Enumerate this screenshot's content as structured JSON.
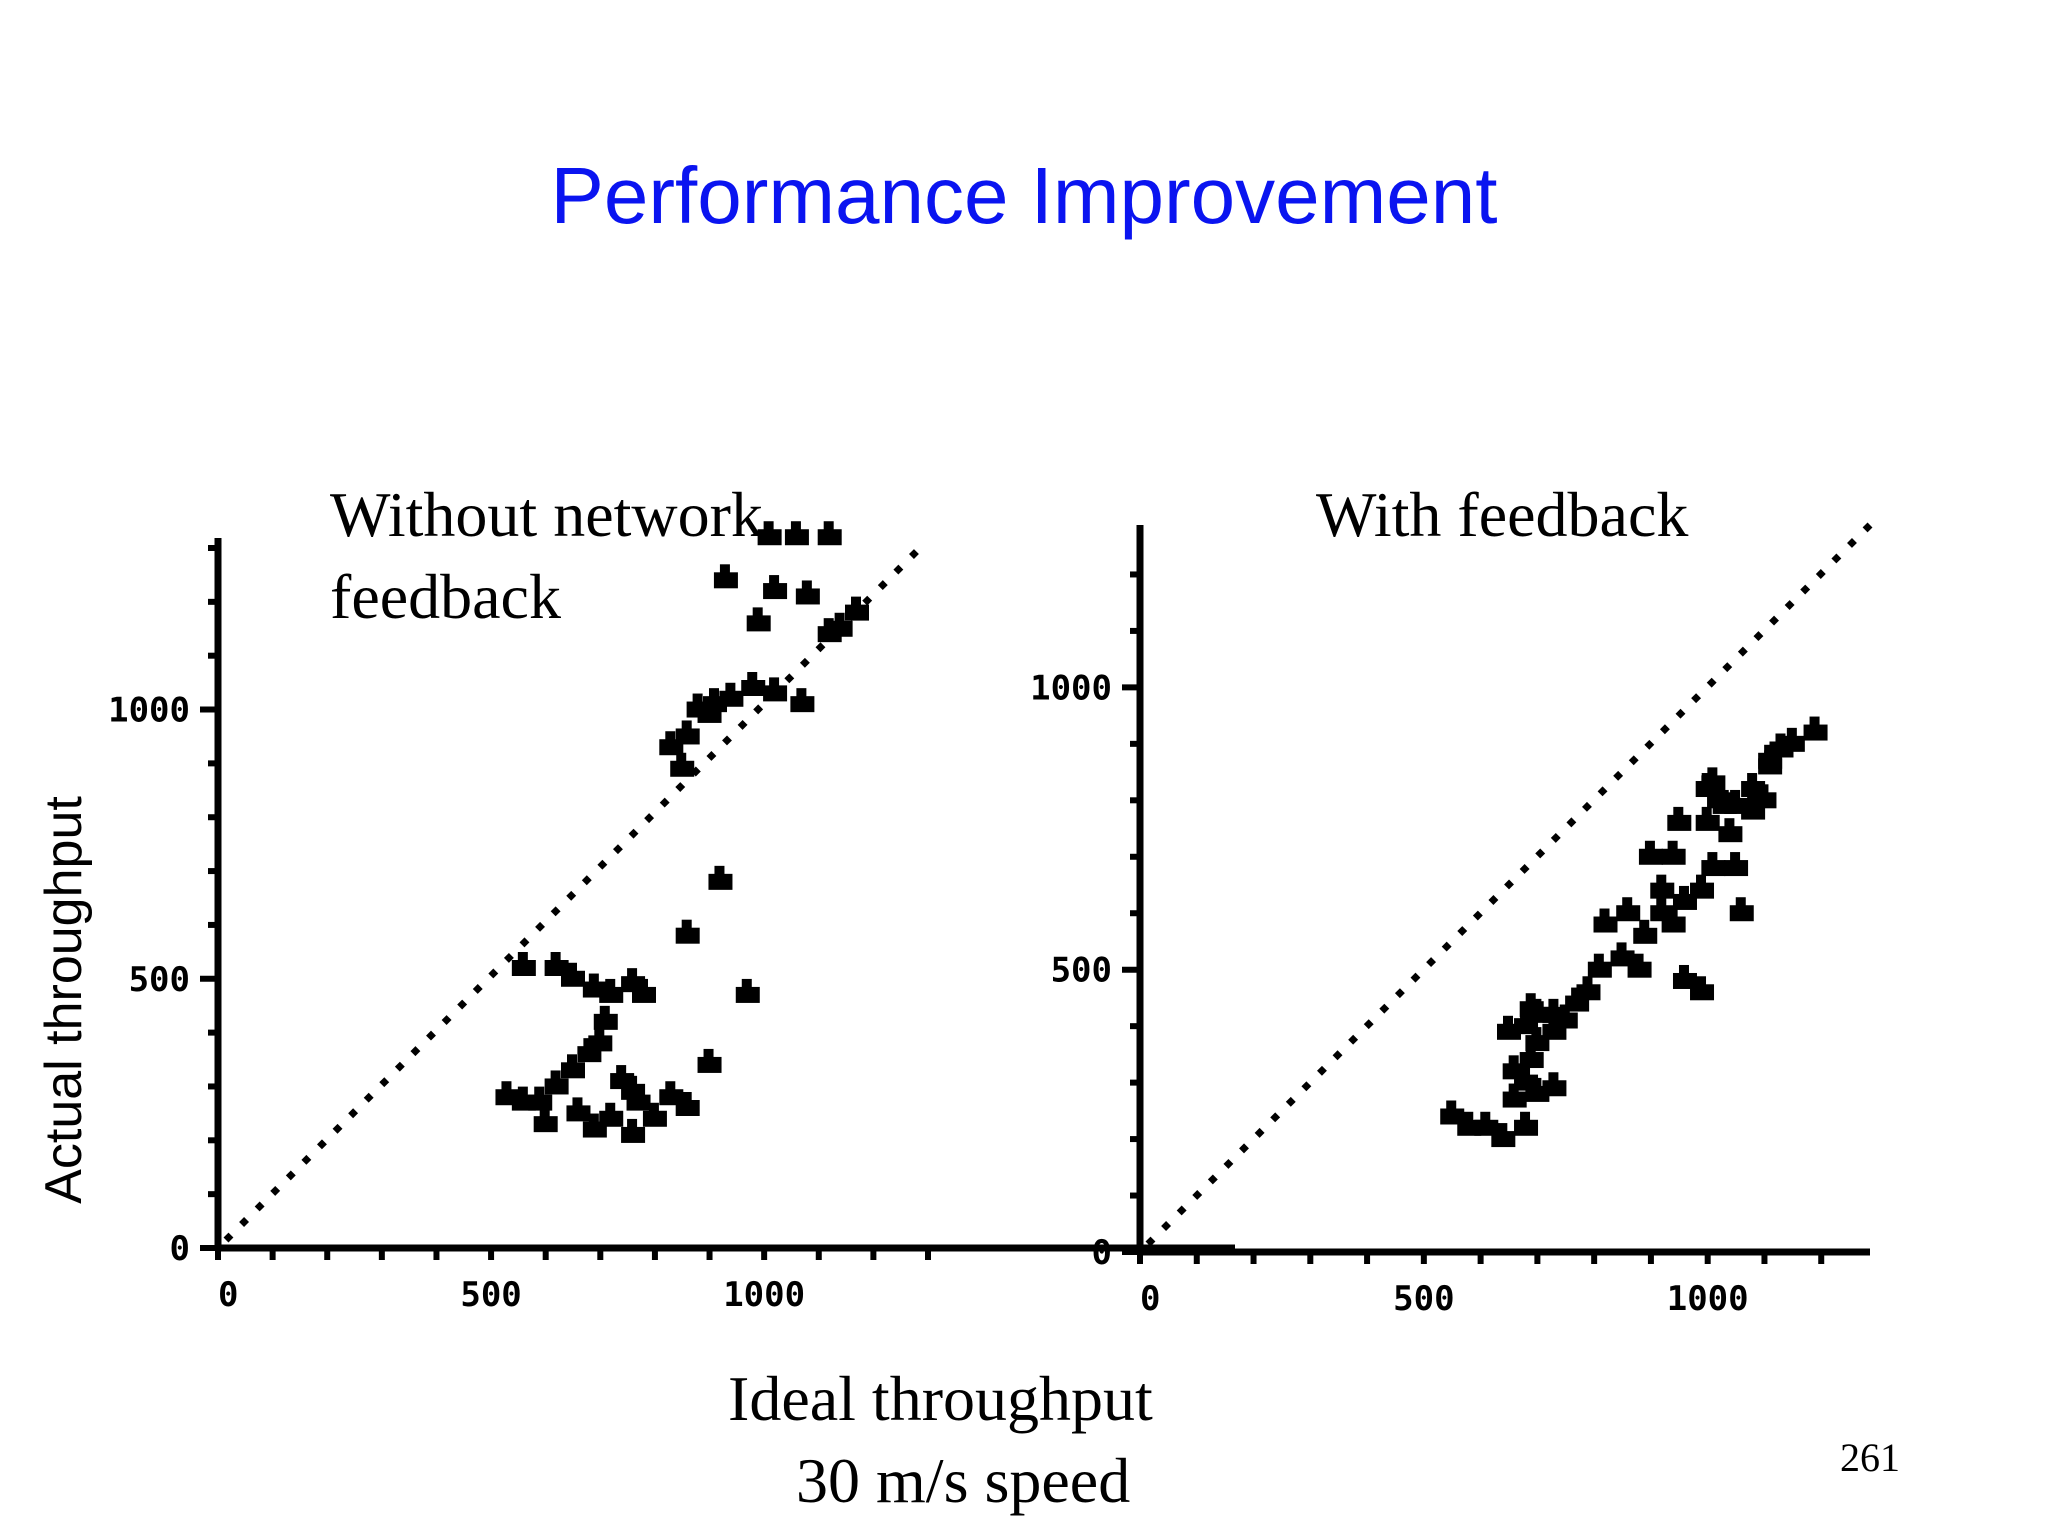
{
  "slide": {
    "title": "Performance Improvement",
    "y_axis_label": "Actual throughput",
    "x_axis_label_line1": "Ideal throughput",
    "x_axis_label_line2": "30 m/s speed",
    "page_number": "261"
  },
  "chart_data": [
    {
      "type": "scatter",
      "title": "Without network feedback",
      "title_lines": [
        "Without network",
        "feedback"
      ],
      "xlim": [
        0,
        1300
      ],
      "ylim": [
        0,
        1300
      ],
      "xticks": [
        0,
        500,
        1000
      ],
      "xtick_labels": [
        "0",
        "500",
        "1000"
      ],
      "yticks": [
        0,
        500,
        1000
      ],
      "ytick_labels": [
        "0",
        "500",
        "1000"
      ],
      "grid": false,
      "series": [
        {
          "points": [
            [
              560,
              270
            ],
            [
              590,
              270
            ],
            [
              620,
              300
            ],
            [
              650,
              330
            ],
            [
              680,
              360
            ],
            [
              700,
              380
            ],
            [
              710,
              420
            ],
            [
              740,
              310
            ],
            [
              770,
              270
            ],
            [
              800,
              240
            ],
            [
              530,
              280
            ],
            [
              600,
              230
            ],
            [
              660,
              250
            ],
            [
              690,
              220
            ],
            [
              720,
              240
            ],
            [
              760,
              210
            ],
            [
              760,
              290
            ],
            [
              830,
              280
            ],
            [
              860,
              260
            ],
            [
              900,
              340
            ],
            [
              560,
              520
            ],
            [
              620,
              520
            ],
            [
              650,
              500
            ],
            [
              690,
              480
            ],
            [
              720,
              470
            ],
            [
              760,
              490
            ],
            [
              780,
              470
            ],
            [
              860,
              580
            ],
            [
              970,
              470
            ],
            [
              920,
              680
            ],
            [
              850,
              890
            ],
            [
              830,
              930
            ],
            [
              860,
              950
            ],
            [
              880,
              1000
            ],
            [
              900,
              990
            ],
            [
              910,
              1010
            ],
            [
              940,
              1020
            ],
            [
              980,
              1040
            ],
            [
              1020,
              1030
            ],
            [
              1070,
              1010
            ],
            [
              930,
              1240
            ],
            [
              990,
              1160
            ],
            [
              1020,
              1220
            ],
            [
              1080,
              1210
            ],
            [
              1120,
              1140
            ],
            [
              1140,
              1150
            ],
            [
              1170,
              1180
            ],
            [
              1010,
              1320
            ],
            [
              1060,
              1320
            ],
            [
              1120,
              1320
            ]
          ]
        }
      ]
    },
    {
      "type": "scatter",
      "title": "With feedback",
      "xlim": [
        0,
        1300
      ],
      "ylim": [
        0,
        1300
      ],
      "xticks": [
        0,
        500,
        1000
      ],
      "xtick_labels": [
        "0",
        "500",
        "1000"
      ],
      "yticks": [
        0,
        500,
        1000
      ],
      "ytick_labels": [
        "0",
        "500",
        "1000"
      ],
      "grid": false,
      "series": [
        {
          "points": [
            [
              550,
              240
            ],
            [
              580,
              220
            ],
            [
              610,
              220
            ],
            [
              640,
              200
            ],
            [
              680,
              220
            ],
            [
              660,
              270
            ],
            [
              680,
              300
            ],
            [
              700,
              280
            ],
            [
              730,
              290
            ],
            [
              660,
              320
            ],
            [
              690,
              340
            ],
            [
              700,
              370
            ],
            [
              730,
              390
            ],
            [
              650,
              390
            ],
            [
              680,
              400
            ],
            [
              690,
              430
            ],
            [
              700,
              420
            ],
            [
              730,
              420
            ],
            [
              750,
              410
            ],
            [
              770,
              440
            ],
            [
              790,
              460
            ],
            [
              810,
              500
            ],
            [
              850,
              520
            ],
            [
              880,
              500
            ],
            [
              820,
              580
            ],
            [
              860,
              600
            ],
            [
              890,
              560
            ],
            [
              920,
              600
            ],
            [
              940,
              580
            ],
            [
              960,
              480
            ],
            [
              990,
              460
            ],
            [
              920,
              640
            ],
            [
              960,
              620
            ],
            [
              990,
              640
            ],
            [
              900,
              700
            ],
            [
              940,
              700
            ],
            [
              1010,
              680
            ],
            [
              1050,
              680
            ],
            [
              1040,
              740
            ],
            [
              1020,
              800
            ],
            [
              1050,
              790
            ],
            [
              950,
              760
            ],
            [
              1000,
              760
            ],
            [
              1000,
              820
            ],
            [
              1010,
              830
            ],
            [
              1030,
              790
            ],
            [
              1080,
              820
            ],
            [
              1080,
              780
            ],
            [
              1100,
              800
            ],
            [
              1060,
              600
            ],
            [
              1110,
              860
            ],
            [
              1150,
              900
            ],
            [
              1190,
              920
            ],
            [
              1130,
              890
            ],
            [
              1110,
              870
            ]
          ]
        }
      ]
    }
  ]
}
